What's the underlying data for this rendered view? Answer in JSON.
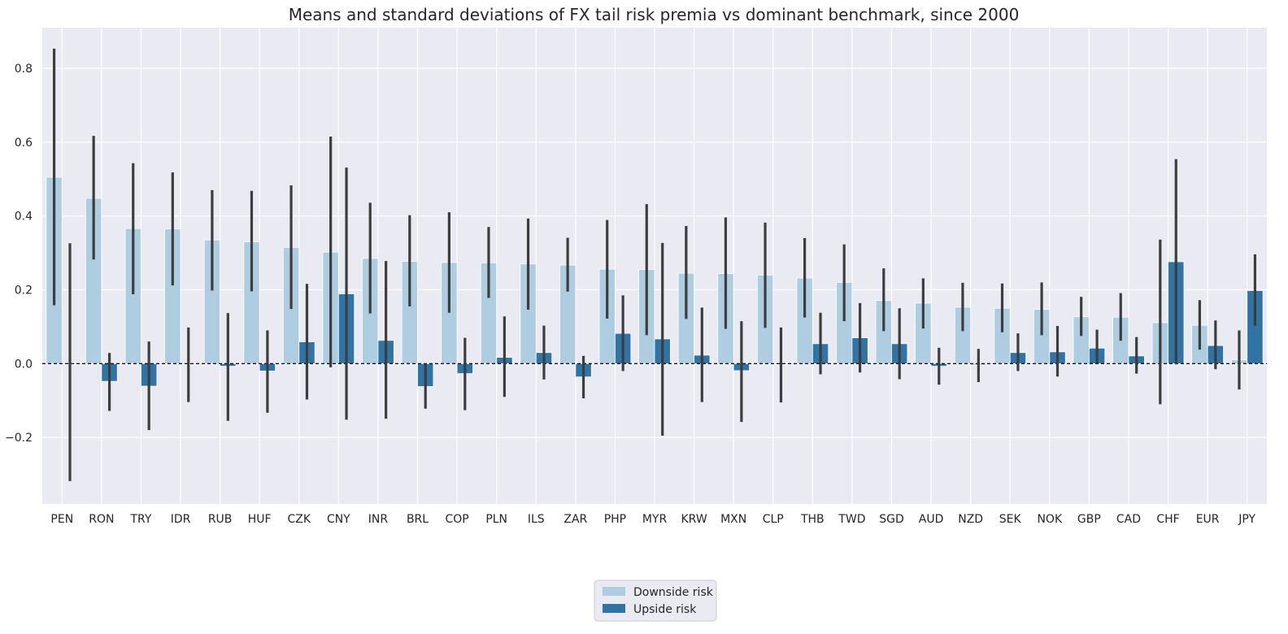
{
  "chart_data": {
    "type": "bar",
    "title": "Means and standard deviations of FX tail risk premia vs dominant benchmark, since 2000",
    "xlabel": "",
    "ylabel": "",
    "ylim": [
      -0.38,
      0.91
    ],
    "yticks": [
      -0.2,
      0.0,
      0.2,
      0.4,
      0.6,
      0.8
    ],
    "ytick_labels": [
      "−0.2",
      "0.0",
      "0.2",
      "0.4",
      "0.6",
      "0.8"
    ],
    "grid": true,
    "legend_position": "bottom-center",
    "reference_line": 0.0,
    "categories": [
      "PEN",
      "RON",
      "TRY",
      "IDR",
      "RUB",
      "HUF",
      "CZK",
      "CNY",
      "INR",
      "BRL",
      "COP",
      "PLN",
      "ILS",
      "ZAR",
      "PHP",
      "MYR",
      "KRW",
      "MXN",
      "CLP",
      "THB",
      "TWD",
      "SGD",
      "AUD",
      "NZD",
      "SEK",
      "NOK",
      "GBP",
      "CAD",
      "CHF",
      "EUR",
      "JPY"
    ],
    "series": [
      {
        "name": "Downside risk",
        "color": "#aecde0",
        "values": [
          0.505,
          0.448,
          0.366,
          0.365,
          0.335,
          0.33,
          0.315,
          0.302,
          0.285,
          0.277,
          0.274,
          0.273,
          0.27,
          0.267,
          0.256,
          0.255,
          0.245,
          0.244,
          0.24,
          0.232,
          0.22,
          0.171,
          0.164,
          0.153,
          0.15,
          0.147,
          0.127,
          0.126,
          0.111,
          0.104,
          0.01
        ],
        "err_low": [
          0.158,
          0.282,
          0.188,
          0.212,
          0.198,
          0.196,
          0.148,
          -0.01,
          0.136,
          0.155,
          0.138,
          0.178,
          0.146,
          0.195,
          0.122,
          0.077,
          0.121,
          0.094,
          0.097,
          0.125,
          0.115,
          0.088,
          0.095,
          0.088,
          0.085,
          0.077,
          0.075,
          0.062,
          -0.11,
          0.038,
          -0.07
        ],
        "err_high": [
          0.853,
          0.617,
          0.543,
          0.518,
          0.47,
          0.468,
          0.483,
          0.615,
          0.436,
          0.402,
          0.41,
          0.37,
          0.393,
          0.341,
          0.389,
          0.432,
          0.373,
          0.396,
          0.382,
          0.34,
          0.323,
          0.258,
          0.231,
          0.219,
          0.217,
          0.22,
          0.181,
          0.191,
          0.336,
          0.172,
          0.09
        ]
      },
      {
        "name": "Upside risk",
        "color": "#3074a6",
        "values": [
          -0.002,
          -0.048,
          -0.061,
          -0.001,
          -0.007,
          -0.02,
          0.059,
          0.189,
          0.063,
          -0.062,
          -0.027,
          0.017,
          0.03,
          -0.036,
          0.082,
          0.067,
          0.023,
          -0.019,
          -0.002,
          0.054,
          0.07,
          0.054,
          -0.007,
          -0.003,
          0.03,
          0.032,
          0.042,
          0.021,
          0.276,
          0.049,
          0.198
        ],
        "err_low": [
          -0.318,
          -0.128,
          -0.18,
          -0.104,
          -0.155,
          -0.133,
          -0.097,
          -0.152,
          -0.149,
          -0.122,
          -0.126,
          -0.09,
          -0.043,
          -0.094,
          -0.02,
          -0.195,
          -0.104,
          -0.158,
          -0.105,
          -0.029,
          -0.024,
          -0.042,
          -0.057,
          -0.05,
          -0.02,
          -0.035,
          0.0,
          -0.027,
          -0.002,
          -0.015,
          0.103
        ],
        "err_high": [
          0.326,
          0.029,
          0.06,
          0.098,
          0.137,
          0.09,
          0.216,
          0.531,
          0.278,
          0.0,
          0.07,
          0.128,
          0.103,
          0.021,
          0.185,
          0.327,
          0.152,
          0.115,
          0.098,
          0.138,
          0.164,
          0.15,
          0.043,
          0.04,
          0.082,
          0.102,
          0.092,
          0.072,
          0.554,
          0.117,
          0.296
        ]
      }
    ]
  }
}
